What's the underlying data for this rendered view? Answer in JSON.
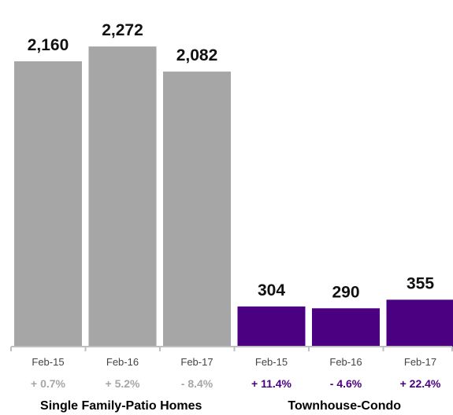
{
  "chart_data": {
    "type": "bar",
    "groups": [
      {
        "label": "Single Family-Patio Homes",
        "color": "#a6a6a6",
        "change_color": "#a6a6a6",
        "categories": [
          "Feb-15",
          "Feb-16",
          "Feb-17"
        ],
        "values": [
          2160,
          2272,
          2082
        ],
        "value_labels": [
          "2,160",
          "2,272",
          "2,082"
        ],
        "changes": [
          "+ 0.7%",
          "+ 5.2%",
          "- 8.4%"
        ]
      },
      {
        "label": "Townhouse-Condo",
        "color": "#4b0082",
        "change_color": "#4b0082",
        "categories": [
          "Feb-15",
          "Feb-16",
          "Feb-17"
        ],
        "values": [
          304,
          290,
          355
        ],
        "value_labels": [
          "304",
          "290",
          "355"
        ],
        "changes": [
          "+ 11.4%",
          "- 4.6%",
          "+ 22.4%"
        ]
      }
    ],
    "ylim": [
      0,
      2380
    ],
    "grid": false,
    "axis_color": "#bfbfbf"
  }
}
